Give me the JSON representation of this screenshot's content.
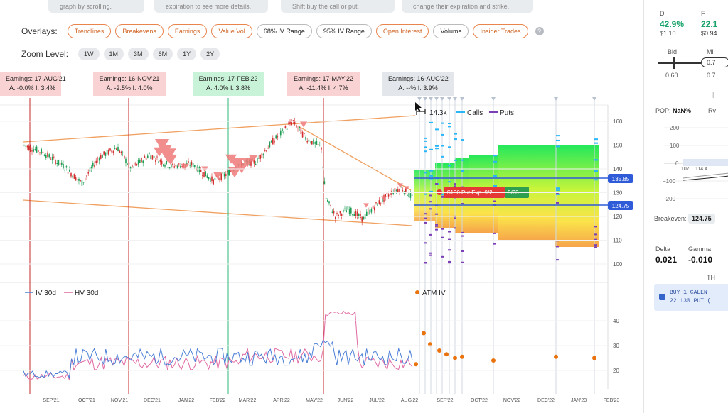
{
  "hints": [
    "graph by scrolling.",
    "expiration to see more details.",
    "Shift buy the call or put.",
    "change their expiration and strike."
  ],
  "overlays": {
    "label": "Overlays:",
    "items": [
      {
        "label": "Trendlines",
        "active": true
      },
      {
        "label": "Breakevens",
        "active": true
      },
      {
        "label": "Earnings",
        "active": true
      },
      {
        "label": "Value Vol",
        "active": true
      },
      {
        "label": "68% IV Range",
        "active": false
      },
      {
        "label": "95% IV Range",
        "active": false
      },
      {
        "label": "Open Interest",
        "active": true
      },
      {
        "label": "Volume",
        "active": false
      },
      {
        "label": "Insider Trades",
        "active": true
      }
    ],
    "help": "?"
  },
  "zoom": {
    "label": "Zoom Level:",
    "items": [
      "1W",
      "1M",
      "3M",
      "6M",
      "1Y",
      "2Y"
    ]
  },
  "earnings": [
    {
      "title": "Earnings: 17-AUG'21",
      "detail": "A: -0.0%   I: 3.4%",
      "color": "red"
    },
    {
      "title": "Earnings: 16-NOV'21",
      "detail": "A: -2.5%   I: 4.0%",
      "color": "red"
    },
    {
      "title": "Earnings: 17-FEB'22",
      "detail": "A: 4.0%   I: 3.8%",
      "color": "green"
    },
    {
      "title": "Earnings: 17-MAY'22",
      "detail": "A: -11.4%   I: 4.7%",
      "color": "red"
    },
    {
      "title": "Earnings: 16-AUG'22",
      "detail": "A: --%   I: 3.9%",
      "color": "gray"
    }
  ],
  "legend_top": {
    "volume": "14.3k",
    "calls": "Calls",
    "puts": "Puts"
  },
  "legend_bottom": {
    "iv": "IV 30d",
    "hv": "HV 30d",
    "atm": "ATM IV"
  },
  "price_axis": [
    "160",
    "150",
    "140",
    "130",
    "120",
    "110",
    "100"
  ],
  "iv_axis": [
    "40",
    "30",
    "20"
  ],
  "price_tags": {
    "upper": "135.85",
    "lower": "124.75"
  },
  "position_tag": {
    "label": "$130 Put Exp. 9/2",
    "date": "9/23"
  },
  "x_axis": [
    "SEP'21",
    "OCT'21",
    "NOV'21",
    "DEC'21",
    "JAN'22",
    "FEB'22",
    "MAR'22",
    "APR'22",
    "MAY'22",
    "JUN'22",
    "JUL'22",
    "AUG'22",
    "SEP'22",
    "OCT'22",
    "NOV'22",
    "DEC'22",
    "JAN'23",
    "FEB'23"
  ],
  "colors": {
    "accent": "#e8844c",
    "calls": "#29b6f6",
    "puts": "#7b3fb5",
    "iv": "#4a7fd6",
    "hv": "#e06aa3",
    "earn_line_red": "#c62828",
    "earn_line_green": "#2eb87a",
    "tag_blue": "#2f5bd8",
    "tag_red": "#e53935",
    "tag_green": "#2e9e4f"
  },
  "right": {
    "col_d": {
      "head": "D",
      "pct": "42.9%",
      "val": "$1.10"
    },
    "col_f": {
      "head": "F",
      "pct": "22.1",
      "val": "$0.94"
    },
    "bid_label": "Bid",
    "mid_label": "Mi",
    "bid_val": "0.60",
    "mid_val": "0.7",
    "mid_box": "0.7",
    "pop_label": "POP:",
    "pop_val": "NaN%",
    "rv_label": "Rv",
    "y_ticks": [
      "200",
      "100",
      "0",
      "−100",
      "−200"
    ],
    "small_a": "107",
    "small_b": "114.4",
    "breakeven_label": "Breakeven:",
    "breakeven_val": "124.75",
    "delta_label": "Delta",
    "delta_val": "0.021",
    "gamma_label": "Gamma",
    "gamma_val": "-0.010",
    "th_label": "TH",
    "order_line1": "BUY 1 CALEN",
    "order_line2": "22 130 PUT ("
  }
}
